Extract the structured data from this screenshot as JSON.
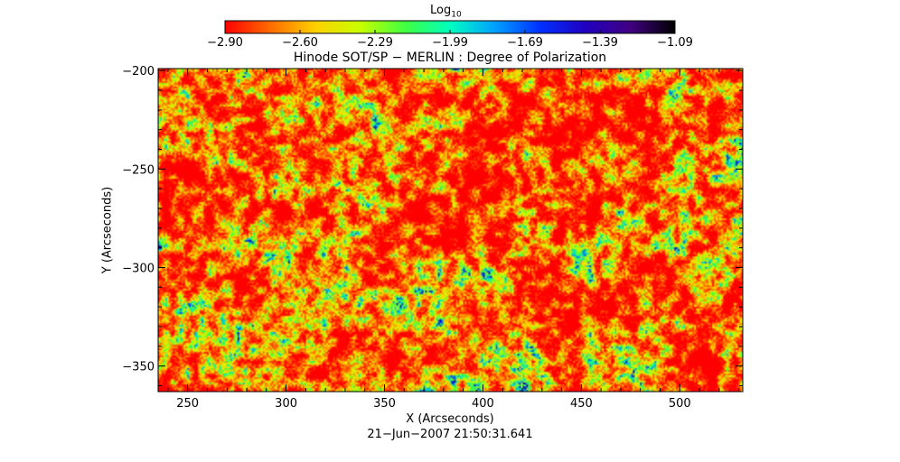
{
  "chart_data": {
    "type": "heatmap",
    "title": "Hinode SOT/SP − MERLIN : Degree of Polarization",
    "xlabel": "X (Arcseconds)",
    "ylabel": "Y (Arcseconds)",
    "xlim": [
      235,
      532
    ],
    "ylim": [
      -363,
      -199
    ],
    "x_ticks": [
      250,
      300,
      350,
      400,
      450,
      500
    ],
    "y_ticks": [
      -200,
      -250,
      -300,
      -350
    ],
    "x_tick_labels": [
      "250",
      "300",
      "350",
      "400",
      "450",
      "500"
    ],
    "y_tick_labels": [
      "−200",
      "−250",
      "−300",
      "−350"
    ],
    "colorbar": {
      "label_main": "Log",
      "label_sub": "10",
      "range": [
        -2.9,
        -1.09
      ],
      "tick_labels": [
        "−2.90",
        "−2.60",
        "−2.29",
        "−1.99",
        "−1.69",
        "−1.39",
        "−1.09"
      ],
      "colormap_stops": [
        "#ff0000",
        "#ff6a00",
        "#ffd000",
        "#c8ff00",
        "#40ff40",
        "#00ffc0",
        "#00a0ff",
        "#0030ff",
        "#2000c0",
        "#400080",
        "#000000"
      ]
    },
    "timestamp": "21−Jun−2007 21:50:31.641",
    "grid": false,
    "legend": "none",
    "field_description_values": {
      "dominant_level": -2.9,
      "typical_range": [
        -2.9,
        -2.3
      ],
      "peak_features_level": -1.6
    }
  }
}
